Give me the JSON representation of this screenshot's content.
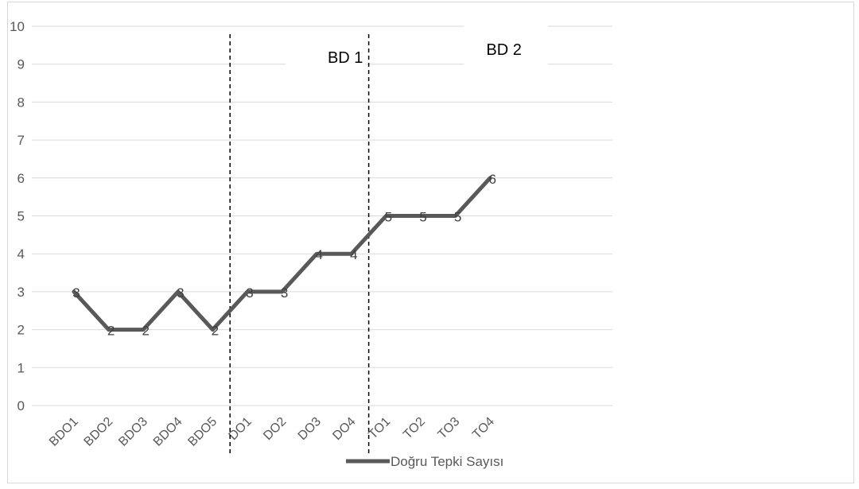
{
  "chart_data": {
    "type": "line",
    "categories": [
      "BDO1",
      "BDO2",
      "BDO3",
      "BDO4",
      "BDO5",
      "DO1",
      "DO2",
      "DO3",
      "DO4",
      "TO1",
      "TO2",
      "TO3",
      "TO4"
    ],
    "series": [
      {
        "name": "Doğru Tepki Sayısı",
        "values": [
          3,
          2,
          2,
          3,
          2,
          3,
          3,
          4,
          4,
          5,
          5,
          5,
          6
        ],
        "color": "#595959"
      }
    ],
    "data_labels": [
      "3",
      "2",
      "2",
      "3",
      "2",
      "3",
      "3",
      "4",
      "4",
      "5",
      "5",
      "5",
      "6"
    ],
    "ylim": [
      0,
      10
    ],
    "yticks": [
      "0",
      "1",
      "2",
      "3",
      "4",
      "5",
      "6",
      "7",
      "8",
      "9",
      "10"
    ],
    "phase_labels": [
      {
        "text": "BD 1"
      },
      {
        "text": "BD 2"
      }
    ],
    "phase_dividers_after_category": [
      "BDO5",
      "DO4"
    ],
    "legend": {
      "placement": "bottom",
      "label": "Doğru Tepki Sayısı"
    },
    "grid": true,
    "title": "",
    "xlabel": "",
    "ylabel": ""
  }
}
